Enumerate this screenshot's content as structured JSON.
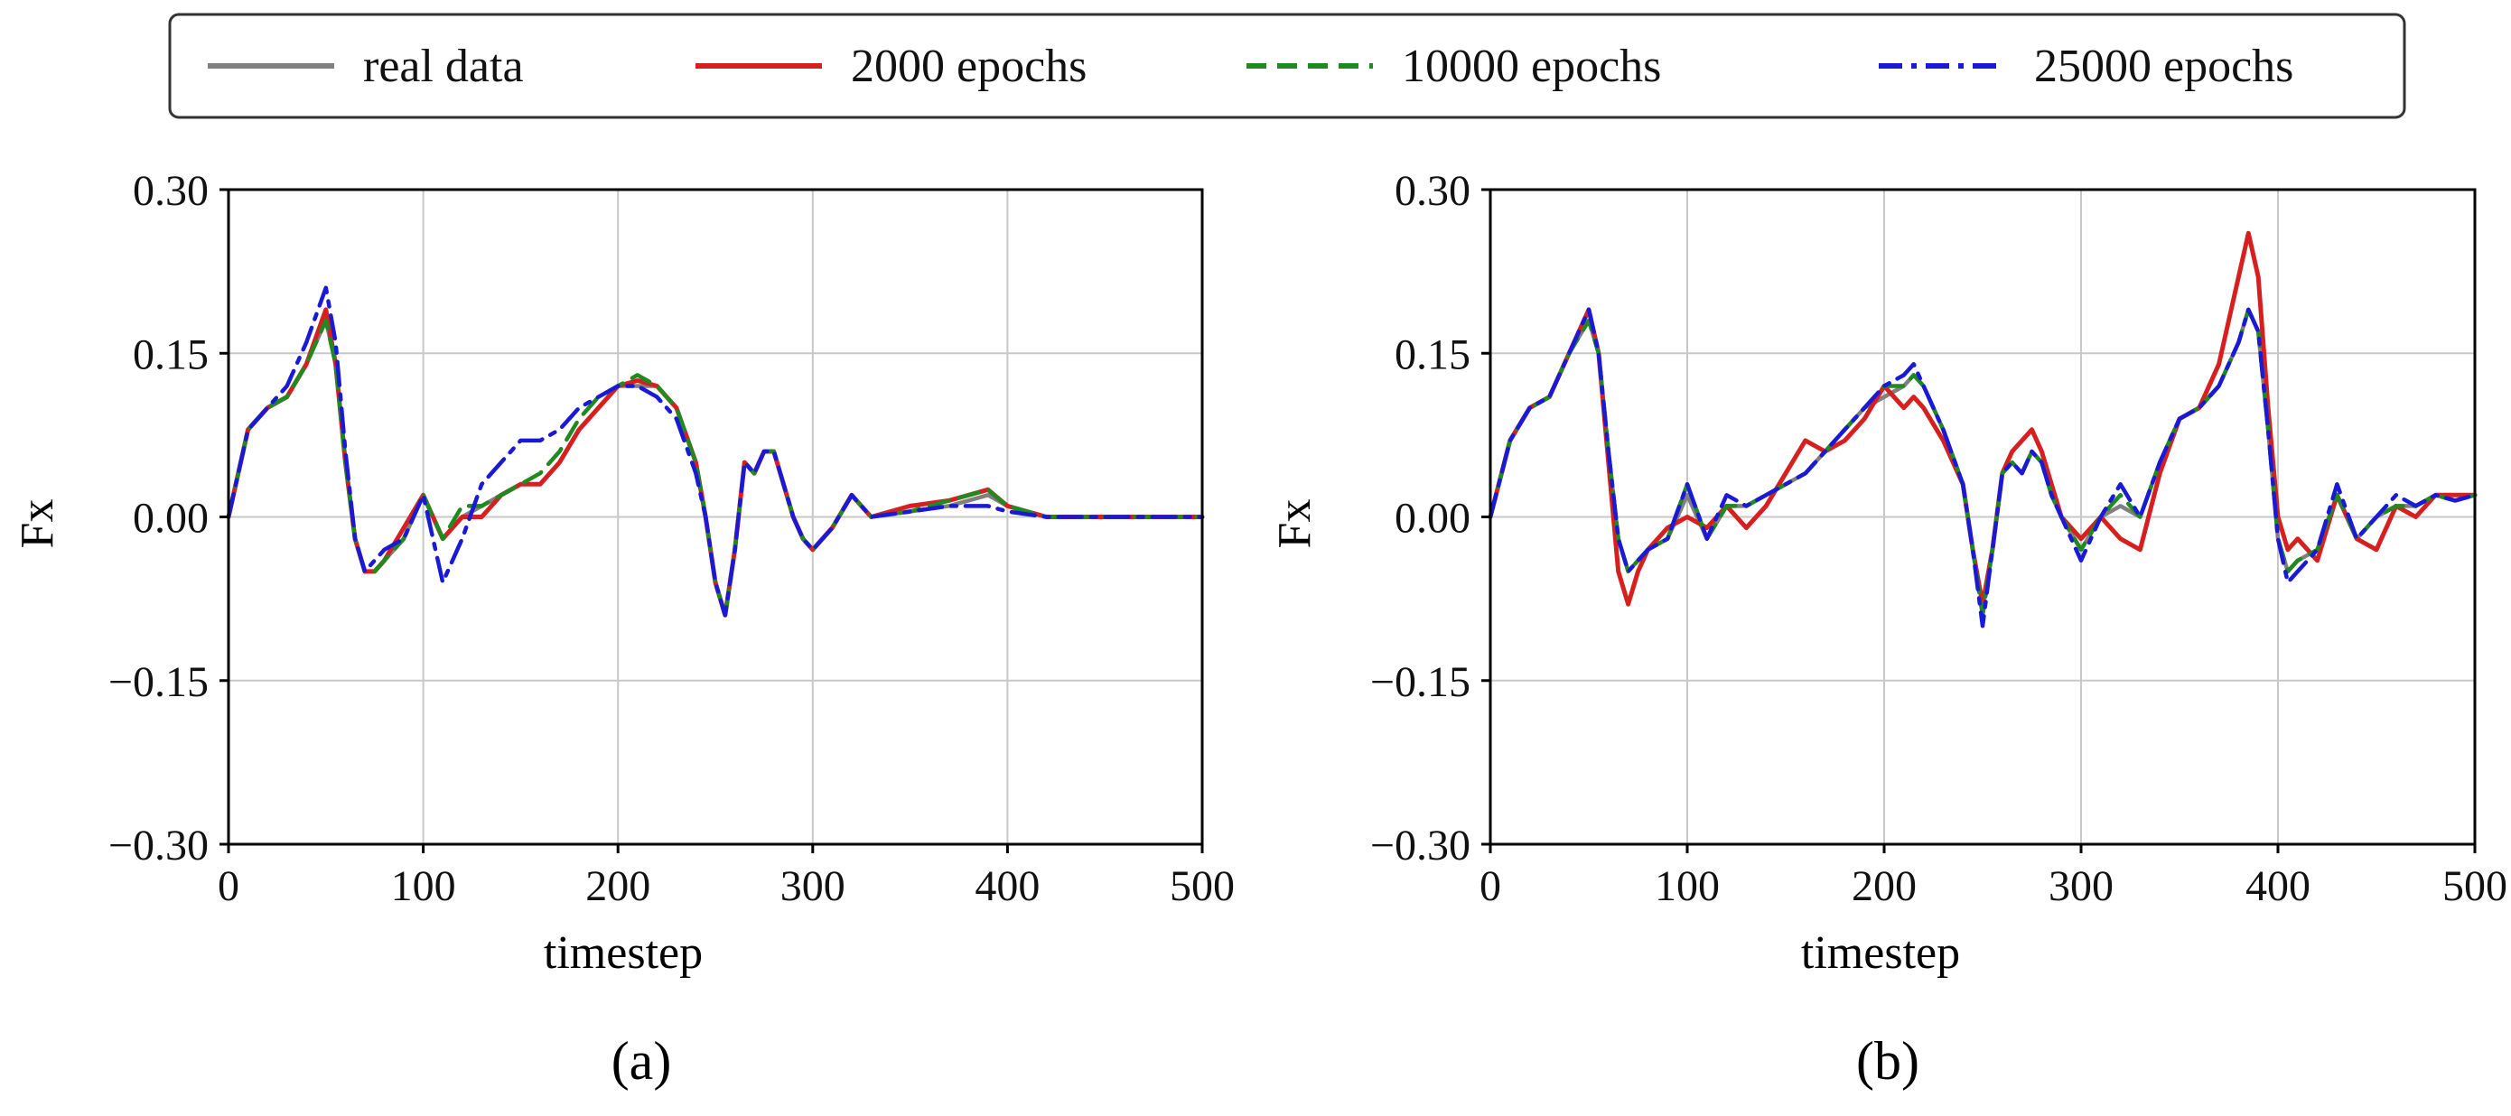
{
  "legend": {
    "placement": "top-center",
    "entries": [
      {
        "label": "real data",
        "color": "#808080",
        "style": "solid"
      },
      {
        "label": "2000 epochs",
        "color": "#d62020",
        "style": "solid"
      },
      {
        "label": "10000 epochs",
        "color": "#1f8a1f",
        "style": "dashed"
      },
      {
        "label": "25000 epochs",
        "color": "#1a1ad6",
        "style": "dashdot"
      }
    ]
  },
  "chart_data": [
    {
      "type": "line",
      "panel_label": "(a)",
      "xlabel": "timestep",
      "ylabel": "Fx",
      "xlim": [
        0,
        500
      ],
      "ylim": [
        -0.3,
        0.3
      ],
      "xticks": [
        "0",
        "100",
        "200",
        "300",
        "400",
        "500"
      ],
      "yticks": [
        "0.30",
        "0.15",
        "0.00",
        "−0.15",
        "−0.30"
      ],
      "grid": true,
      "x": [
        0,
        10,
        20,
        30,
        40,
        50,
        55,
        60,
        65,
        70,
        75,
        80,
        90,
        100,
        110,
        120,
        130,
        140,
        150,
        160,
        170,
        180,
        190,
        200,
        210,
        220,
        230,
        240,
        245,
        250,
        255,
        260,
        265,
        270,
        275,
        280,
        285,
        290,
        295,
        300,
        310,
        320,
        330,
        350,
        370,
        390,
        400,
        420,
        450,
        500
      ],
      "series": [
        {
          "name": "real data",
          "values": [
            0.0,
            0.08,
            0.1,
            0.11,
            0.14,
            0.18,
            0.14,
            0.05,
            -0.02,
            -0.05,
            -0.05,
            -0.04,
            -0.02,
            0.02,
            -0.02,
            0.0,
            0.01,
            0.02,
            0.03,
            0.03,
            0.05,
            0.08,
            0.1,
            0.12,
            0.12,
            0.12,
            0.1,
            0.05,
            0.0,
            -0.06,
            -0.09,
            -0.03,
            0.05,
            0.04,
            0.06,
            0.06,
            0.03,
            0.0,
            -0.02,
            -0.03,
            -0.01,
            0.02,
            0.0,
            0.005,
            0.01,
            0.02,
            0.01,
            0.0,
            0.0,
            0.0
          ]
        },
        {
          "name": "2000 epochs",
          "values": [
            0.0,
            0.08,
            0.1,
            0.11,
            0.14,
            0.19,
            0.14,
            0.05,
            -0.02,
            -0.05,
            -0.05,
            -0.04,
            -0.01,
            0.02,
            -0.02,
            0.0,
            0.0,
            0.02,
            0.03,
            0.03,
            0.05,
            0.08,
            0.1,
            0.12,
            0.125,
            0.12,
            0.1,
            0.05,
            0.0,
            -0.06,
            -0.09,
            -0.03,
            0.05,
            0.04,
            0.06,
            0.06,
            0.03,
            0.0,
            -0.02,
            -0.03,
            -0.01,
            0.02,
            0.0,
            0.01,
            0.015,
            0.025,
            0.01,
            0.0,
            0.0,
            0.0
          ]
        },
        {
          "name": "10000 epochs",
          "values": [
            0.0,
            0.08,
            0.1,
            0.11,
            0.14,
            0.18,
            0.14,
            0.05,
            -0.02,
            -0.05,
            -0.05,
            -0.04,
            -0.02,
            0.02,
            -0.02,
            0.01,
            0.01,
            0.02,
            0.03,
            0.04,
            0.06,
            0.09,
            0.11,
            0.12,
            0.13,
            0.12,
            0.1,
            0.05,
            0.0,
            -0.06,
            -0.09,
            -0.03,
            0.05,
            0.04,
            0.06,
            0.06,
            0.03,
            0.0,
            -0.02,
            -0.03,
            -0.01,
            0.02,
            0.0,
            0.005,
            0.015,
            0.025,
            0.01,
            0.0,
            0.0,
            0.0
          ]
        },
        {
          "name": "25000 epochs",
          "values": [
            0.0,
            0.08,
            0.1,
            0.12,
            0.16,
            0.21,
            0.16,
            0.06,
            -0.02,
            -0.05,
            -0.04,
            -0.03,
            -0.02,
            0.02,
            -0.06,
            -0.02,
            0.03,
            0.05,
            0.07,
            0.07,
            0.08,
            0.1,
            0.11,
            0.12,
            0.12,
            0.11,
            0.09,
            0.04,
            0.0,
            -0.06,
            -0.09,
            -0.03,
            0.05,
            0.04,
            0.06,
            0.06,
            0.03,
            0.0,
            -0.02,
            -0.03,
            -0.01,
            0.02,
            0.0,
            0.005,
            0.01,
            0.01,
            0.005,
            0.0,
            0.0,
            0.0
          ]
        }
      ]
    },
    {
      "type": "line",
      "panel_label": "(b)",
      "xlabel": "timestep",
      "ylabel": "Fx",
      "xlim": [
        0,
        500
      ],
      "ylim": [
        -0.3,
        0.3
      ],
      "xticks": [
        "0",
        "100",
        "200",
        "300",
        "400",
        "500"
      ],
      "yticks": [
        "0.30",
        "0.15",
        "0.00",
        "−0.15",
        "−0.30"
      ],
      "grid": true,
      "x": [
        0,
        10,
        20,
        30,
        40,
        50,
        55,
        60,
        65,
        70,
        75,
        80,
        90,
        100,
        110,
        120,
        130,
        140,
        150,
        160,
        170,
        180,
        190,
        200,
        210,
        215,
        220,
        230,
        240,
        245,
        250,
        255,
        260,
        265,
        270,
        275,
        280,
        285,
        290,
        300,
        310,
        320,
        330,
        340,
        350,
        360,
        370,
        380,
        385,
        390,
        395,
        400,
        405,
        410,
        420,
        430,
        440,
        450,
        460,
        470,
        480,
        490,
        500
      ],
      "series": [
        {
          "name": "real data",
          "values": [
            0.0,
            0.07,
            0.1,
            0.11,
            0.15,
            0.18,
            0.15,
            0.06,
            -0.02,
            -0.05,
            -0.04,
            -0.03,
            -0.02,
            0.02,
            -0.02,
            0.01,
            0.01,
            0.02,
            0.03,
            0.04,
            0.06,
            0.08,
            0.1,
            0.11,
            0.12,
            0.13,
            0.12,
            0.08,
            0.03,
            -0.03,
            -0.08,
            -0.03,
            0.04,
            0.05,
            0.04,
            0.06,
            0.05,
            0.02,
            0.0,
            -0.03,
            0.0,
            0.01,
            0.0,
            0.05,
            0.09,
            0.1,
            0.12,
            0.16,
            0.19,
            0.17,
            0.08,
            -0.02,
            -0.05,
            -0.04,
            -0.03,
            0.02,
            -0.02,
            0.0,
            0.01,
            0.01,
            0.02,
            0.015,
            0.02
          ]
        },
        {
          "name": "2000 epochs",
          "values": [
            0.0,
            0.07,
            0.1,
            0.11,
            0.15,
            0.19,
            0.15,
            0.05,
            -0.05,
            -0.08,
            -0.05,
            -0.03,
            -0.01,
            0.0,
            -0.01,
            0.01,
            -0.01,
            0.01,
            0.04,
            0.07,
            0.06,
            0.07,
            0.09,
            0.12,
            0.1,
            0.11,
            0.1,
            0.07,
            0.03,
            -0.03,
            -0.08,
            -0.03,
            0.04,
            0.06,
            0.07,
            0.08,
            0.06,
            0.03,
            0.0,
            -0.02,
            0.0,
            -0.02,
            -0.03,
            0.04,
            0.09,
            0.1,
            0.14,
            0.22,
            0.26,
            0.22,
            0.1,
            0.0,
            -0.03,
            -0.02,
            -0.04,
            0.02,
            -0.02,
            -0.03,
            0.01,
            0.0,
            0.02,
            0.02,
            0.02
          ]
        },
        {
          "name": "10000 epochs",
          "values": [
            0.0,
            0.07,
            0.1,
            0.11,
            0.15,
            0.18,
            0.15,
            0.06,
            -0.02,
            -0.05,
            -0.04,
            -0.03,
            -0.02,
            0.03,
            -0.02,
            0.01,
            0.01,
            0.02,
            0.03,
            0.04,
            0.06,
            0.08,
            0.1,
            0.12,
            0.12,
            0.13,
            0.12,
            0.08,
            0.03,
            -0.03,
            -0.09,
            -0.03,
            0.04,
            0.05,
            0.04,
            0.06,
            0.05,
            0.02,
            0.0,
            -0.03,
            0.0,
            0.02,
            0.0,
            0.05,
            0.09,
            0.1,
            0.12,
            0.16,
            0.19,
            0.17,
            0.08,
            -0.02,
            -0.05,
            -0.04,
            -0.03,
            0.02,
            -0.02,
            0.0,
            0.01,
            0.01,
            0.02,
            0.015,
            0.02
          ]
        },
        {
          "name": "25000 epochs",
          "values": [
            0.0,
            0.07,
            0.1,
            0.11,
            0.15,
            0.19,
            0.15,
            0.06,
            -0.02,
            -0.05,
            -0.04,
            -0.03,
            -0.02,
            0.03,
            -0.02,
            0.02,
            0.01,
            0.02,
            0.03,
            0.04,
            0.06,
            0.08,
            0.1,
            0.12,
            0.13,
            0.14,
            0.12,
            0.08,
            0.03,
            -0.03,
            -0.1,
            -0.03,
            0.04,
            0.05,
            0.04,
            0.06,
            0.05,
            0.02,
            0.0,
            -0.04,
            0.0,
            0.03,
            0.0,
            0.05,
            0.09,
            0.1,
            0.12,
            0.16,
            0.19,
            0.17,
            0.08,
            -0.02,
            -0.06,
            -0.05,
            -0.03,
            0.03,
            -0.02,
            0.0,
            0.02,
            0.01,
            0.02,
            0.015,
            0.02
          ]
        }
      ]
    }
  ]
}
